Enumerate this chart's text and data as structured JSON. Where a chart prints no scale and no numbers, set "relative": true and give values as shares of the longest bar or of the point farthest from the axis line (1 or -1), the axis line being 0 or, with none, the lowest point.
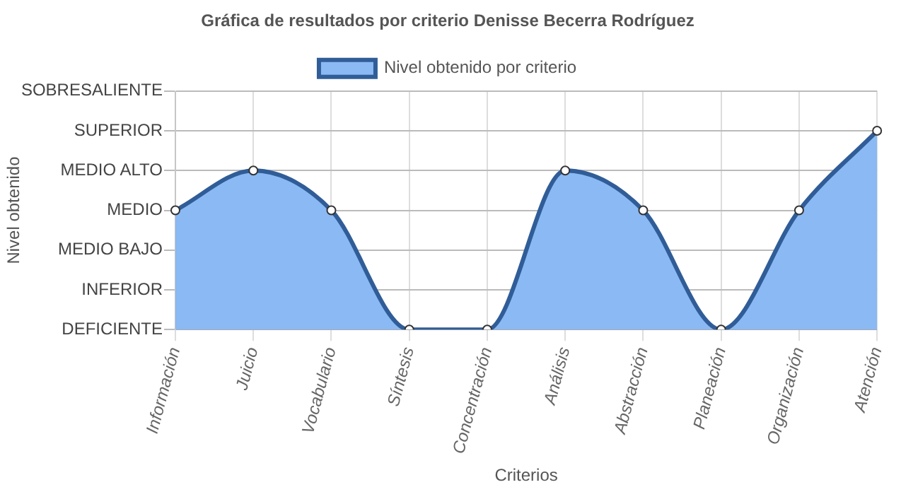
{
  "chart_data": {
    "type": "area",
    "title": "Gráfica de resultados por criterio Denisse Becerra Rodríguez",
    "xlabel": "Criterios",
    "categories": [
      "Información",
      "Juicio",
      "Vocabulario",
      "Síntesis",
      "Concentración",
      "Análisis",
      "Abstracción",
      "Planeación",
      "Organización",
      "Atención"
    ],
    "relative": true,
    "series": [
      {
        "name": "Nivel obtenido por criterio",
        "color": "#8ab9f4",
        "values": [
          0.6,
          0.8,
          0.6,
          0,
          0,
          0.8,
          0.6,
          0,
          0.6,
          1
        ]
      }
    ],
    "annotations": [
      "Nivel obtenido",
      "DEFICIENTE",
      "INFERIOR",
      "MEDIO BAJO",
      "MEDIO",
      "MEDIO ALTO",
      "SUPERIOR",
      "SOBRESALIENTE"
    ],
    "grid": true,
    "legend": "top",
    "marker": "circle",
    "line_style": "solid"
  }
}
